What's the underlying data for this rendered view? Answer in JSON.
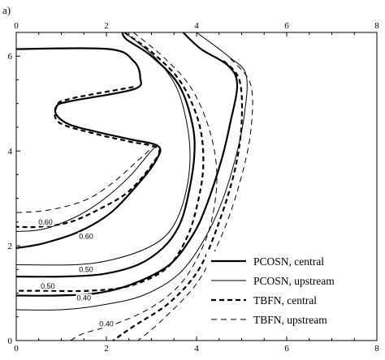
{
  "panel_label": "a)",
  "chart_data": {
    "type": "line",
    "title": "",
    "xlabel": "",
    "ylabel": "",
    "xlim": [
      0,
      8
    ],
    "ylim": [
      0,
      6.5
    ],
    "x_ticks": [
      0,
      2,
      4,
      6,
      8
    ],
    "y_ticks": [
      0,
      2,
      4,
      6
    ],
    "x_tick_labels": [
      "0",
      "2",
      "4",
      "6",
      "8"
    ],
    "y_tick_labels": [
      "0",
      "2",
      "4",
      "6"
    ],
    "legend_position": "bottom-right",
    "series": [
      {
        "name": "PCOSN, central",
        "style": "solid-thick",
        "curves": [
          [
            [
              0.0,
              6.15
            ],
            [
              2.05,
              6.15
            ],
            [
              2.6,
              5.9
            ],
            [
              2.75,
              5.55
            ],
            [
              2.6,
              5.3
            ],
            [
              1.2,
              5.05
            ],
            [
              0.9,
              4.95
            ],
            [
              0.9,
              4.75
            ],
            [
              1.2,
              4.55
            ],
            [
              1.8,
              4.4
            ],
            [
              2.5,
              4.25
            ],
            [
              3.15,
              4.1
            ],
            [
              3.1,
              3.8
            ],
            [
              2.7,
              3.3
            ],
            [
              2.1,
              2.7
            ],
            [
              1.4,
              2.3
            ],
            [
              0.6,
              2.05
            ],
            [
              0.0,
              1.95
            ]
          ],
          [
            [
              2.35,
              6.5
            ],
            [
              2.45,
              6.35
            ],
            [
              3.0,
              6.0
            ],
            [
              3.6,
              5.4
            ],
            [
              3.9,
              4.6
            ],
            [
              3.95,
              3.9
            ],
            [
              3.8,
              3.0
            ],
            [
              3.6,
              2.4
            ],
            [
              3.25,
              1.95
            ],
            [
              2.7,
              1.6
            ],
            [
              1.9,
              1.4
            ],
            [
              1.0,
              1.35
            ],
            [
              0.0,
              1.35
            ]
          ],
          [
            [
              3.7,
              6.5
            ],
            [
              4.1,
              6.15
            ],
            [
              4.7,
              5.8
            ],
            [
              4.9,
              5.4
            ],
            [
              4.75,
              4.6
            ],
            [
              4.55,
              3.8
            ],
            [
              4.2,
              2.8
            ],
            [
              3.9,
              2.2
            ],
            [
              3.4,
              1.6
            ],
            [
              2.6,
              1.2
            ],
            [
              1.8,
              1.0
            ],
            [
              0.9,
              0.95
            ],
            [
              0.0,
              0.95
            ]
          ]
        ]
      },
      {
        "name": "PCOSN, upstream",
        "style": "solid-thin",
        "curves": [
          [
            [
              0.0,
              2.3
            ],
            [
              0.6,
              2.35
            ],
            [
              1.3,
              2.6
            ],
            [
              1.9,
              2.95
            ],
            [
              2.5,
              3.45
            ],
            [
              2.95,
              3.95
            ],
            [
              3.1,
              4.1
            ]
          ],
          [
            [
              2.4,
              6.5
            ],
            [
              3.05,
              6.0
            ],
            [
              3.55,
              5.35
            ],
            [
              3.8,
              4.5
            ],
            [
              3.85,
              3.7
            ],
            [
              3.7,
              2.9
            ],
            [
              3.4,
              2.3
            ],
            [
              2.9,
              1.95
            ],
            [
              2.1,
              1.7
            ],
            [
              1.3,
              1.6
            ],
            [
              0.0,
              1.6
            ]
          ],
          [
            [
              4.0,
              6.5
            ],
            [
              4.7,
              6.0
            ],
            [
              5.1,
              5.6
            ],
            [
              5.05,
              4.7
            ],
            [
              4.85,
              3.8
            ],
            [
              4.55,
              2.9
            ],
            [
              4.15,
              2.1
            ],
            [
              3.6,
              1.4
            ],
            [
              2.8,
              0.95
            ],
            [
              1.9,
              0.75
            ],
            [
              1.0,
              0.65
            ],
            [
              0.0,
              0.65
            ]
          ]
        ]
      },
      {
        "name": "TBFN, central",
        "style": "dashed-thick",
        "curves": [
          [
            [
              2.6,
              5.35
            ],
            [
              1.2,
              5.1
            ],
            [
              0.9,
              4.95
            ],
            [
              0.95,
              4.6
            ],
            [
              1.8,
              4.35
            ],
            [
              2.5,
              4.2
            ],
            [
              3.15,
              4.05
            ],
            [
              3.0,
              3.7
            ],
            [
              2.5,
              3.15
            ],
            [
              1.9,
              2.8
            ],
            [
              1.2,
              2.5
            ],
            [
              0.5,
              2.4
            ],
            [
              0.0,
              2.4
            ]
          ],
          [
            [
              2.4,
              6.5
            ],
            [
              3.05,
              6.05
            ],
            [
              3.65,
              5.45
            ],
            [
              4.05,
              4.6
            ],
            [
              4.15,
              3.7
            ],
            [
              4.0,
              2.8
            ],
            [
              3.75,
              2.1
            ],
            [
              3.3,
              1.5
            ],
            [
              2.5,
              1.15
            ],
            [
              1.6,
              1.05
            ],
            [
              0.6,
              1.05
            ],
            [
              0.0,
              1.05
            ]
          ],
          [
            [
              4.6,
              5.9
            ],
            [
              4.95,
              5.5
            ],
            [
              5.0,
              4.6
            ],
            [
              4.85,
              3.6
            ],
            [
              4.5,
              2.5
            ],
            [
              4.05,
              1.5
            ],
            [
              3.4,
              0.8
            ],
            [
              2.6,
              0.3
            ],
            [
              2.15,
              0.0
            ]
          ]
        ]
      },
      {
        "name": "TBFN, upstream",
        "style": "dashed-thin",
        "curves": [
          [
            [
              0.0,
              2.7
            ],
            [
              0.7,
              2.75
            ],
            [
              1.5,
              2.95
            ],
            [
              2.1,
              3.3
            ],
            [
              2.7,
              3.8
            ],
            [
              3.05,
              4.1
            ]
          ],
          [
            [
              2.6,
              6.5
            ],
            [
              3.3,
              5.95
            ],
            [
              3.9,
              5.3
            ],
            [
              4.3,
              4.4
            ],
            [
              4.45,
              3.5
            ],
            [
              4.35,
              2.6
            ],
            [
              4.1,
              1.9
            ],
            [
              3.65,
              1.2
            ],
            [
              3.0,
              0.7
            ],
            [
              2.2,
              0.35
            ],
            [
              1.5,
              0.15
            ],
            [
              1.2,
              0.0
            ]
          ],
          [
            [
              4.75,
              5.95
            ],
            [
              5.2,
              5.4
            ],
            [
              5.2,
              4.4
            ],
            [
              4.95,
              3.3
            ],
            [
              4.55,
              2.2
            ],
            [
              4.0,
              1.2
            ],
            [
              3.2,
              0.4
            ],
            [
              2.7,
              0.0
            ]
          ]
        ]
      }
    ],
    "annotations": [
      {
        "text": "0.60",
        "x": 0.65,
        "y": 2.5
      },
      {
        "text": "0.60",
        "x": 1.55,
        "y": 2.2
      },
      {
        "text": "0.50",
        "x": 1.55,
        "y": 1.5
      },
      {
        "text": "0.50",
        "x": 0.7,
        "y": 1.15
      },
      {
        "text": "0.40",
        "x": 1.5,
        "y": 0.9
      },
      {
        "text": "0.40",
        "x": 2.0,
        "y": 0.35
      }
    ]
  }
}
